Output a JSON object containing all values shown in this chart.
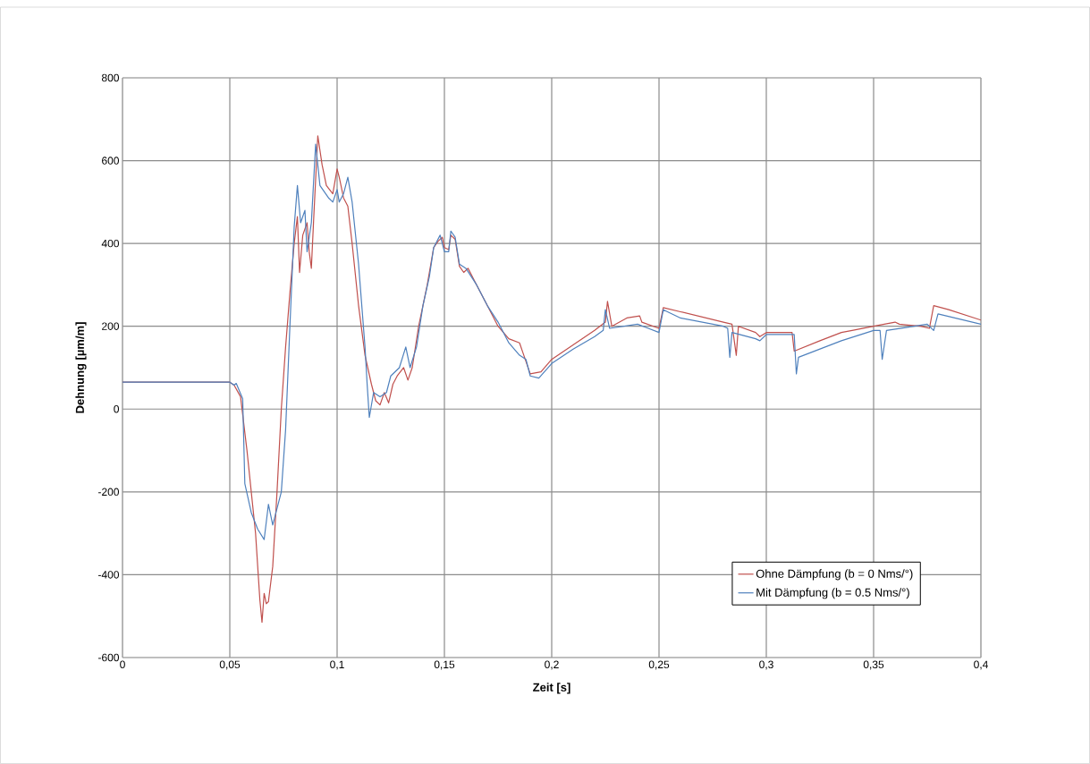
{
  "chart_data": {
    "type": "line",
    "xlabel": "Zeit [s]",
    "ylabel": "Dehnung [µm/m]",
    "xlim": [
      0,
      0.4
    ],
    "ylim": [
      -600,
      800
    ],
    "xticks": [
      {
        "value": 0,
        "label": "0"
      },
      {
        "value": 0.05,
        "label": "0,05"
      },
      {
        "value": 0.1,
        "label": "0,1"
      },
      {
        "value": 0.15,
        "label": "0,15"
      },
      {
        "value": 0.2,
        "label": "0,2"
      },
      {
        "value": 0.25,
        "label": "0,25"
      },
      {
        "value": 0.3,
        "label": "0,3"
      },
      {
        "value": 0.35,
        "label": "0,35"
      },
      {
        "value": 0.4,
        "label": "0,4"
      }
    ],
    "yticks": [
      -600,
      -400,
      -200,
      0,
      200,
      400,
      600,
      800
    ],
    "grid": true,
    "legend": "bottom right",
    "marker": "none",
    "line_style": "solid",
    "series": [
      {
        "name": "Ohne Dämpfung (b = 0 Nms/°)",
        "color": "#c0504d",
        "x": [
          0,
          0.05,
          0.052,
          0.055,
          0.058,
          0.062,
          0.064,
          0.065,
          0.066,
          0.067,
          0.068,
          0.07,
          0.072,
          0.074,
          0.076,
          0.078,
          0.08,
          0.0815,
          0.0825,
          0.084,
          0.086,
          0.087,
          0.088,
          0.089,
          0.091,
          0.093,
          0.095,
          0.098,
          0.1,
          0.101,
          0.103,
          0.105,
          0.107,
          0.11,
          0.113,
          0.116,
          0.118,
          0.12,
          0.122,
          0.124,
          0.126,
          0.128,
          0.131,
          0.133,
          0.135,
          0.138,
          0.142,
          0.145,
          0.147,
          0.149,
          0.15,
          0.152,
          0.153,
          0.155,
          0.157,
          0.159,
          0.161,
          0.165,
          0.17,
          0.175,
          0.18,
          0.185,
          0.187,
          0.19,
          0.195,
          0.2,
          0.21,
          0.22,
          0.225,
          0.226,
          0.228,
          0.235,
          0.241,
          0.242,
          0.25,
          0.252,
          0.26,
          0.28,
          0.284,
          0.286,
          0.287,
          0.295,
          0.297,
          0.3,
          0.312,
          0.313,
          0.325,
          0.335,
          0.34,
          0.35,
          0.36,
          0.362,
          0.372,
          0.376,
          0.378,
          0.385,
          0.4
        ],
        "values": [
          65,
          65,
          58,
          30,
          -100,
          -300,
          -460,
          -515,
          -445,
          -470,
          -465,
          -380,
          -200,
          0,
          150,
          280,
          400,
          465,
          330,
          420,
          450,
          380,
          340,
          450,
          660,
          590,
          540,
          520,
          580,
          560,
          510,
          490,
          400,
          250,
          130,
          60,
          20,
          10,
          40,
          15,
          60,
          80,
          100,
          70,
          100,
          200,
          300,
          390,
          405,
          415,
          390,
          385,
          420,
          410,
          345,
          330,
          340,
          300,
          250,
          200,
          170,
          160,
          130,
          85,
          90,
          120,
          155,
          190,
          210,
          260,
          200,
          220,
          225,
          210,
          195,
          245,
          235,
          210,
          205,
          130,
          200,
          185,
          175,
          185,
          185,
          140,
          165,
          185,
          190,
          200,
          210,
          205,
          200,
          195,
          250,
          240,
          215
        ]
      },
      {
        "name": "Mit Dämpfung (b = 0.5 Nms/°)",
        "color": "#4f81bd",
        "x": [
          0,
          0.05,
          0.052,
          0.053,
          0.056,
          0.057,
          0.06,
          0.063,
          0.066,
          0.068,
          0.07,
          0.072,
          0.074,
          0.076,
          0.078,
          0.08,
          0.0815,
          0.083,
          0.085,
          0.086,
          0.088,
          0.09,
          0.092,
          0.096,
          0.098,
          0.1,
          0.101,
          0.103,
          0.105,
          0.107,
          0.11,
          0.113,
          0.114,
          0.115,
          0.117,
          0.12,
          0.123,
          0.125,
          0.129,
          0.132,
          0.134,
          0.137,
          0.14,
          0.143,
          0.145,
          0.148,
          0.15,
          0.152,
          0.153,
          0.155,
          0.157,
          0.16,
          0.165,
          0.17,
          0.175,
          0.18,
          0.185,
          0.188,
          0.19,
          0.194,
          0.2,
          0.21,
          0.22,
          0.224,
          0.225,
          0.227,
          0.24,
          0.245,
          0.25,
          0.252,
          0.26,
          0.28,
          0.282,
          0.283,
          0.284,
          0.295,
          0.297,
          0.3,
          0.313,
          0.314,
          0.315,
          0.335,
          0.35,
          0.353,
          0.354,
          0.356,
          0.375,
          0.378,
          0.38,
          0.4
        ],
        "values": [
          65,
          65,
          58,
          62,
          25,
          -180,
          -250,
          -290,
          -315,
          -230,
          -280,
          -240,
          -200,
          -50,
          200,
          440,
          540,
          450,
          480,
          380,
          450,
          640,
          540,
          510,
          500,
          530,
          500,
          520,
          560,
          500,
          350,
          150,
          60,
          -20,
          40,
          30,
          40,
          80,
          100,
          150,
          100,
          150,
          250,
          320,
          390,
          420,
          380,
          380,
          430,
          415,
          350,
          340,
          300,
          250,
          210,
          160,
          130,
          120,
          80,
          75,
          110,
          145,
          175,
          190,
          240,
          195,
          205,
          195,
          185,
          240,
          220,
          200,
          195,
          125,
          185,
          170,
          165,
          180,
          180,
          85,
          125,
          165,
          190,
          190,
          120,
          190,
          205,
          190,
          230,
          205
        ]
      }
    ]
  }
}
